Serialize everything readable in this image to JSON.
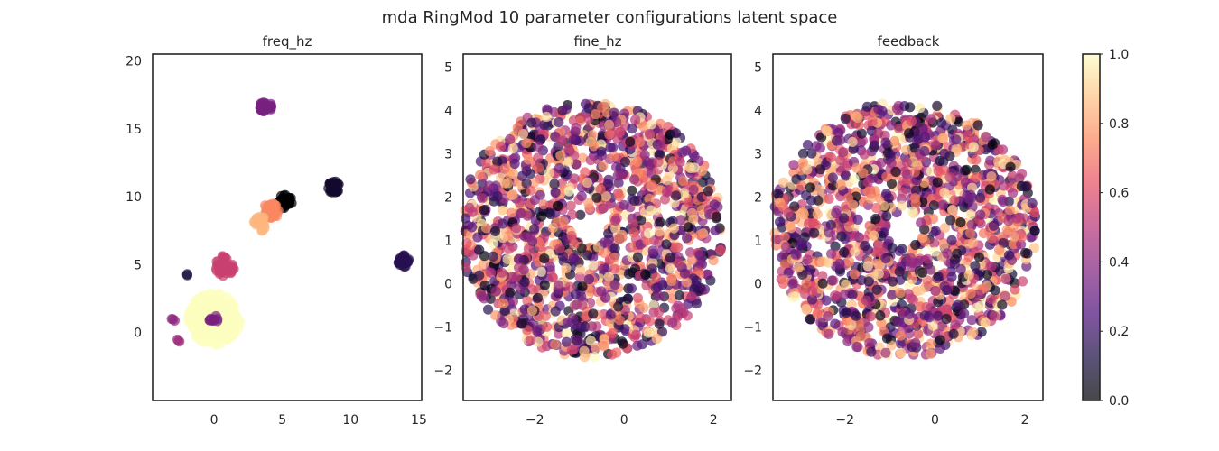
{
  "title": "mda RingMod 10 parameter configurations latent space",
  "colormap": {
    "name": "magma",
    "stops": [
      "#000004",
      "#1c1044",
      "#4f127b",
      "#812581",
      "#b5367a",
      "#e55064",
      "#fb8761",
      "#fec287",
      "#fcfdbf"
    ],
    "alpha": 0.7
  },
  "colorbar": {
    "range": [
      0.0,
      1.0
    ],
    "tick_labels": [
      "0.0",
      "0.2",
      "0.4",
      "0.6",
      "0.8",
      "1.0"
    ],
    "tick_values": [
      0.0,
      0.2,
      0.4,
      0.6,
      0.8,
      1.0
    ]
  },
  "chart_data": [
    {
      "type": "scatter",
      "title": "freq_hz",
      "xlim": [
        -4.5,
        15.2
      ],
      "ylim": [
        -5,
        20.5
      ],
      "xticks": [
        0,
        5,
        10,
        15
      ],
      "xtick_labels": [
        "0",
        "5",
        "10",
        "15"
      ],
      "yticks": [
        0,
        5,
        10,
        15,
        20
      ],
      "ytick_labels": [
        "0",
        "5",
        "10",
        "15",
        "20"
      ],
      "clusters": [
        {
          "cx": 3.8,
          "cy": 16.6,
          "r": 0.45,
          "value": 0.35,
          "count": 30
        },
        {
          "cx": 8.8,
          "cy": 10.7,
          "r": 0.45,
          "value": 0.08,
          "count": 30
        },
        {
          "cx": 5.2,
          "cy": 9.6,
          "r": 0.55,
          "value": 0.0,
          "count": 35
        },
        {
          "cx": 4.2,
          "cy": 9.0,
          "r": 0.6,
          "value": 0.75,
          "count": 35
        },
        {
          "cx": 3.4,
          "cy": 8.0,
          "r": 0.55,
          "value": 0.85,
          "count": 30
        },
        {
          "cx": 0.8,
          "cy": 4.9,
          "r": 0.75,
          "value": 0.55,
          "count": 45
        },
        {
          "cx": 13.9,
          "cy": 5.3,
          "r": 0.45,
          "value": 0.15,
          "count": 30
        },
        {
          "cx": 0.0,
          "cy": 1.0,
          "r": 1.9,
          "value": 1.0,
          "count": 260
        },
        {
          "cx": 0.0,
          "cy": 0.9,
          "r": 0.35,
          "value": 0.35,
          "count": 12
        },
        {
          "cx": -2.0,
          "cy": 4.3,
          "r": 0.1,
          "value": 0.1,
          "count": 2
        },
        {
          "cx": -3.0,
          "cy": 1.0,
          "r": 0.2,
          "value": 0.4,
          "count": 3
        },
        {
          "cx": -2.5,
          "cy": -0.5,
          "r": 0.2,
          "value": 0.45,
          "count": 3
        }
      ]
    },
    {
      "type": "scatter",
      "title": "fine_hz",
      "xlim": [
        -3.6,
        2.4
      ],
      "ylim": [
        -2.7,
        5.3
      ],
      "xticks": [
        -2,
        0,
        2
      ],
      "xtick_labels": [
        "−2",
        "0",
        "2"
      ],
      "yticks": [
        -2,
        -1,
        0,
        1,
        2,
        3,
        4,
        5
      ],
      "ytick_labels": [
        "−2",
        "−1",
        "0",
        "1",
        "2",
        "3",
        "4",
        "5"
      ],
      "ring": {
        "cx": -0.75,
        "cy": 1.25,
        "r_outer": 2.95,
        "r_inner": 0.4,
        "count": 1500
      }
    },
    {
      "type": "scatter",
      "title": "feedback",
      "xlim": [
        -3.6,
        2.4
      ],
      "ylim": [
        -2.7,
        5.3
      ],
      "xticks": [
        -2,
        0,
        2
      ],
      "xtick_labels": [
        "−2",
        "0",
        "2"
      ],
      "yticks": [
        -2,
        -1,
        0,
        1,
        2,
        3,
        4,
        5
      ],
      "ytick_labels": [
        "−2",
        "−1",
        "0",
        "1",
        "2",
        "3",
        "4",
        "5"
      ],
      "ring": {
        "cx": -0.7,
        "cy": 1.25,
        "r_outer": 2.95,
        "r_inner": 0.4,
        "count": 1500
      }
    }
  ]
}
